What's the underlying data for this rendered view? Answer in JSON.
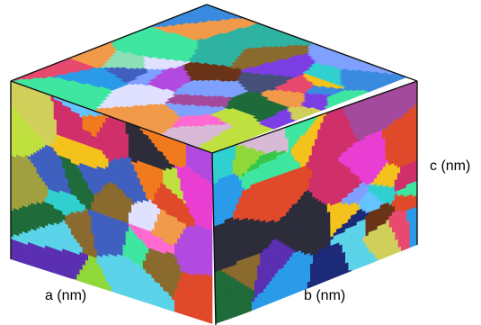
{
  "labels": {
    "a": "a (nm)",
    "b": "b (nm)",
    "c": "c (nm)"
  },
  "grain_colors": [
    "#7b3fe4",
    "#e83fd2",
    "#39c64a",
    "#3a8be0",
    "#f27a1e",
    "#d8b9d6",
    "#1c2a78",
    "#90d83a",
    "#2fb3a2",
    "#e84a6f",
    "#5bd3e8",
    "#f4c21c",
    "#8a6a2e",
    "#47507a",
    "#b34ae0",
    "#1f6b3a",
    "#e04a2a",
    "#7fa0ff",
    "#c0e040",
    "#2c2c3a",
    "#ff6ad0",
    "#64c4ff",
    "#a44a9c",
    "#3ee6a0",
    "#f09a4a",
    "#5a2fb0",
    "#cfcf5a",
    "#2a9be8",
    "#e0e0ff",
    "#6a3418",
    "#8ce0b8",
    "#d0306a",
    "#4060c0",
    "#a0a040",
    "#30d0d0"
  ],
  "edge_color": "#111111"
}
